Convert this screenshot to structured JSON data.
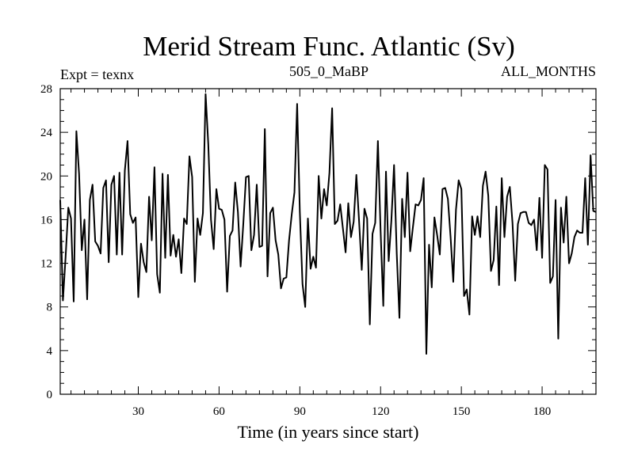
{
  "chart_data": {
    "type": "line",
    "title": "Merid Stream Func. Atlantic (Sv)",
    "subtitle_left": "Expt = texnx",
    "subtitle_center": "505_0_MaBP",
    "subtitle_right": "ALL_MONTHS",
    "xlabel": "Time (in years since start)",
    "ylabel": "",
    "xlim": [
      1,
      200
    ],
    "ylim": [
      0,
      28
    ],
    "xticks": [
      30,
      60,
      90,
      120,
      150,
      180
    ],
    "yticks": [
      0,
      4,
      8,
      12,
      16,
      20,
      24,
      28
    ],
    "x_start": 1,
    "x_step": 1,
    "series": [
      {
        "name": "Merid Stream Func. Atlantic",
        "color": "#000000",
        "values": [
          17.8,
          8.6,
          12.6,
          17.1,
          16.1,
          8.5,
          24.1,
          20.2,
          13.2,
          16.0,
          8.7,
          17.8,
          19.2,
          14.0,
          13.6,
          12.9,
          18.9,
          19.6,
          12.1,
          19.2,
          20.0,
          12.8,
          20.3,
          12.8,
          20.5,
          23.2,
          16.5,
          15.7,
          16.2,
          8.9,
          13.8,
          12.1,
          11.2,
          18.1,
          14.1,
          20.8,
          11.0,
          9.3,
          20.2,
          12.5,
          20.1,
          12.7,
          14.6,
          12.6,
          14.2,
          11.1,
          16.1,
          15.6,
          21.8,
          19.9,
          10.3,
          16.1,
          14.6,
          16.6,
          27.5,
          22.9,
          16.0,
          13.3,
          18.8,
          17.0,
          16.9,
          16.0,
          9.4,
          14.5,
          15.0,
          19.4,
          16.7,
          11.7,
          15.6,
          19.9,
          20.0,
          13.2,
          14.6,
          19.2,
          13.5,
          13.6,
          24.3,
          10.8,
          16.6,
          17.1,
          14.1,
          12.8,
          9.7,
          10.6,
          10.7,
          14.1,
          16.5,
          18.5,
          26.6,
          16.7,
          10.1,
          8.0,
          16.1,
          11.5,
          12.6,
          11.6,
          20.0,
          16.1,
          18.8,
          17.3,
          20.3,
          26.2,
          15.6,
          15.9,
          17.4,
          15.2,
          13.0,
          17.5,
          14.4,
          15.8,
          20.1,
          15.9,
          11.4,
          17.0,
          16.1,
          6.4,
          14.7,
          15.7,
          23.2,
          15.0,
          8.1,
          20.4,
          12.2,
          15.9,
          21.0,
          12.9,
          7.0,
          17.9,
          14.4,
          20.3,
          13.1,
          15.3,
          17.4,
          17.3,
          17.8,
          19.8,
          3.7,
          13.7,
          9.8,
          16.2,
          14.6,
          12.8,
          18.8,
          18.9,
          17.9,
          14.4,
          10.3,
          16.9,
          19.6,
          18.8,
          9.0,
          9.6,
          7.3,
          16.3,
          14.6,
          16.3,
          14.4,
          19.1,
          20.4,
          18.2,
          11.3,
          12.3,
          17.2,
          10.0,
          19.8,
          14.4,
          18.1,
          19.0,
          15.7,
          10.4,
          15.6,
          16.6,
          16.7,
          16.7,
          15.7,
          15.5,
          16.0,
          13.2,
          18.0,
          12.5,
          21.0,
          20.6,
          10.2,
          10.8,
          17.8,
          5.1,
          17.1,
          13.9,
          18.1,
          12.0,
          12.9,
          14.4,
          15.0,
          14.8,
          14.8,
          19.8,
          13.7,
          21.9,
          16.8,
          16.7
        ]
      }
    ],
    "grid": false,
    "legend": "none"
  }
}
